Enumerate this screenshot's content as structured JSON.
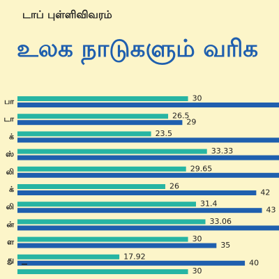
{
  "header": {
    "subtitle": "டாப் புள்ளிவிவரம்",
    "title": "உலக நாடுகளும் வரிக"
  },
  "colors": {
    "background": "#fcf5c9",
    "series_teal": "#27b5a3",
    "series_blue": "#1f5fae"
  },
  "chart_data": {
    "type": "bar",
    "orientation": "horizontal",
    "categories": [
      "பா",
      "டா",
      "க்",
      "ஸ்",
      "லி",
      "க்",
      "லி",
      "ன்",
      "ள",
      "து"
    ],
    "series": [
      {
        "values": [
          30,
          26.5,
          23.5,
          33.33,
          29.65,
          26,
          31.4,
          33.06,
          30,
          17.92
        ]
      },
      {
        "values": [
          null,
          29,
          null,
          null,
          null,
          42,
          43,
          null,
          35,
          40
        ]
      }
    ],
    "series_labels": [
      [
        "30",
        "26.5",
        "23.5",
        "33.33",
        "29.65",
        "26",
        "31.4",
        "33.06",
        "30",
        "17.92"
      ],
      [
        "",
        "29",
        "",
        "",
        "",
        "42",
        "43",
        "",
        "35",
        "40"
      ]
    ],
    "xlim": [
      0,
      46
    ],
    "partial_next_label": "30"
  }
}
